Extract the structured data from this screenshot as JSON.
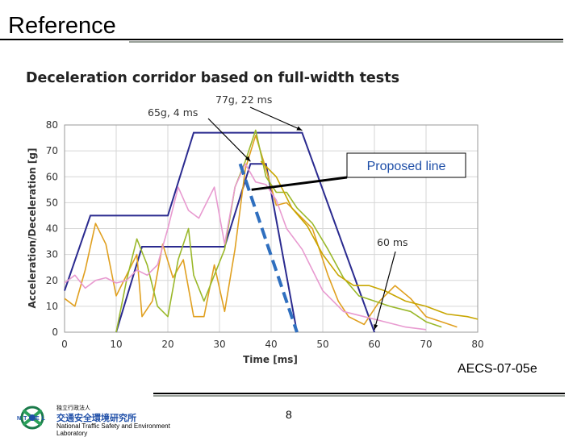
{
  "slide": {
    "title": "Reference",
    "ref_code": "AECS-07-05e",
    "page_number": "8"
  },
  "footer": {
    "org_small": "独立行政法人",
    "org_jp": "交通安全環境研究所",
    "org_en": "National Traffic Safety and Environment Laboratory",
    "logo_text": "NTSEL"
  },
  "chart_data": {
    "type": "line",
    "title": "Deceleration corridor based on full-width tests",
    "xlabel": "Time [ms]",
    "ylabel": "Acceleration/Deceleration [g]",
    "xlim": [
      0,
      80
    ],
    "ylim": [
      0,
      80
    ],
    "xticks": [
      "0",
      "10",
      "20",
      "30",
      "40",
      "50",
      "60",
      "70",
      "80"
    ],
    "yticks": [
      "0",
      "10",
      "20",
      "30",
      "40",
      "50",
      "60",
      "70",
      "80"
    ],
    "grid": true,
    "corridor": {
      "upper": [
        [
          0,
          16
        ],
        [
          5,
          45
        ],
        [
          20,
          45
        ],
        [
          25,
          77
        ],
        [
          46,
          77
        ],
        [
          60,
          0
        ]
      ],
      "lower": [
        [
          10,
          0
        ],
        [
          15,
          33
        ],
        [
          31,
          33
        ],
        [
          36,
          65
        ],
        [
          39,
          65
        ],
        [
          45,
          0
        ]
      ],
      "color": "#2a2a8f"
    },
    "proposed_line": {
      "label": "Proposed line",
      "points": [
        [
          34,
          65
        ],
        [
          45,
          0
        ]
      ],
      "color": "#2f6fbf"
    },
    "series": [
      {
        "color": "#e0a020",
        "values": [
          [
            0,
            13
          ],
          [
            2,
            10
          ],
          [
            4,
            24
          ],
          [
            6,
            42
          ],
          [
            8,
            34
          ],
          [
            10,
            14
          ],
          [
            12,
            22
          ],
          [
            14,
            30
          ],
          [
            15,
            6
          ],
          [
            17,
            12
          ],
          [
            19,
            34
          ],
          [
            21,
            21
          ],
          [
            23,
            28
          ],
          [
            25,
            6
          ],
          [
            27,
            6
          ],
          [
            29,
            26
          ],
          [
            31,
            8
          ],
          [
            33,
            32
          ],
          [
            35,
            63
          ],
          [
            37,
            76
          ],
          [
            39,
            63
          ],
          [
            41,
            49
          ],
          [
            43,
            50
          ],
          [
            45,
            46
          ],
          [
            48,
            40
          ],
          [
            51,
            22
          ],
          [
            53,
            12
          ],
          [
            55,
            6
          ],
          [
            58,
            3
          ],
          [
            61,
            12
          ],
          [
            64,
            18
          ],
          [
            67,
            13
          ],
          [
            70,
            6
          ],
          [
            73,
            4
          ],
          [
            76,
            2
          ]
        ]
      },
      {
        "color": "#9ab82a",
        "values": [
          [
            10,
            0
          ],
          [
            12,
            20
          ],
          [
            14,
            36
          ],
          [
            16,
            26
          ],
          [
            18,
            10
          ],
          [
            20,
            6
          ],
          [
            22,
            28
          ],
          [
            24,
            40
          ],
          [
            25,
            22
          ],
          [
            27,
            12
          ],
          [
            29,
            22
          ],
          [
            31,
            32
          ],
          [
            33,
            56
          ],
          [
            35,
            66
          ],
          [
            37,
            78
          ],
          [
            39,
            60
          ],
          [
            41,
            54
          ],
          [
            43,
            54
          ],
          [
            45,
            48
          ],
          [
            48,
            42
          ],
          [
            51,
            32
          ],
          [
            54,
            21
          ],
          [
            57,
            14
          ],
          [
            60,
            12
          ],
          [
            63,
            10
          ],
          [
            67,
            8
          ],
          [
            70,
            4
          ],
          [
            73,
            2
          ]
        ]
      },
      {
        "color": "#e89ad0",
        "values": [
          [
            0,
            19
          ],
          [
            2,
            22
          ],
          [
            4,
            17
          ],
          [
            6,
            20
          ],
          [
            8,
            21
          ],
          [
            10,
            19
          ],
          [
            12,
            20
          ],
          [
            14,
            24
          ],
          [
            16,
            22
          ],
          [
            18,
            26
          ],
          [
            20,
            40
          ],
          [
            22,
            56
          ],
          [
            24,
            47
          ],
          [
            26,
            44
          ],
          [
            28,
            52
          ],
          [
            29,
            56
          ],
          [
            31,
            34
          ],
          [
            33,
            56
          ],
          [
            35,
            65
          ],
          [
            37,
            58
          ],
          [
            39,
            57
          ],
          [
            41,
            51
          ],
          [
            43,
            40
          ],
          [
            46,
            32
          ],
          [
            50,
            16
          ],
          [
            54,
            8
          ],
          [
            58,
            6
          ],
          [
            62,
            4
          ],
          [
            66,
            2
          ],
          [
            70,
            1
          ]
        ]
      },
      {
        "color": "#c8a600",
        "values": [
          [
            38,
            66
          ],
          [
            41,
            60
          ],
          [
            44,
            48
          ],
          [
            47,
            41
          ],
          [
            50,
            30
          ],
          [
            53,
            22
          ],
          [
            56,
            18
          ],
          [
            59,
            18
          ],
          [
            62,
            16
          ],
          [
            66,
            12
          ],
          [
            70,
            10
          ],
          [
            74,
            7
          ],
          [
            78,
            6
          ],
          [
            80,
            5
          ]
        ]
      }
    ],
    "annotations": [
      {
        "text": "77g, 22 ms",
        "target": [
          46,
          77
        ]
      },
      {
        "text": "65g, 4 ms",
        "target": [
          36,
          65
        ]
      },
      {
        "text": "60 ms",
        "target": [
          60,
          0
        ]
      }
    ]
  }
}
